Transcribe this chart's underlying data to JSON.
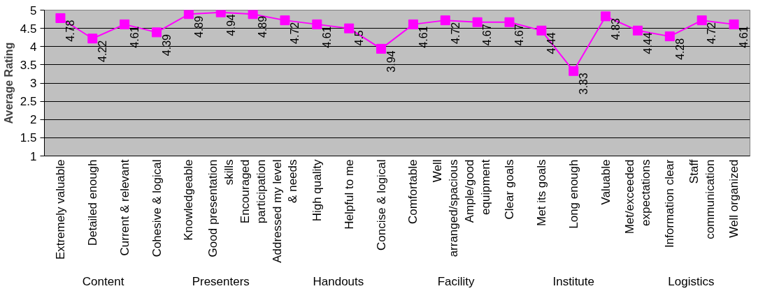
{
  "chart_data": {
    "type": "line",
    "ylabel": "Average Rating",
    "categories": [
      "Extremely valuable",
      "Detailed enough",
      "Current & relevant",
      "Cohesive & logical",
      "Knowledgeable",
      "Good presentation skills",
      "Encouraged participation",
      "Addressed my level & needs",
      "High quality",
      "Helpful to me",
      "Concise & logical",
      "Comfortable",
      "Well arranged/spacious",
      "Ample/good equipment",
      "Clear goals",
      "Met its goals",
      "Long enough",
      "Valuable",
      "Met/exceeded expectations",
      "Information clear",
      "Staff communication",
      "Well organized"
    ],
    "series": [
      {
        "color": "#ff00ff",
        "values": [
          4.78,
          4.22,
          4.61,
          4.39,
          4.89,
          4.94,
          4.89,
          4.72,
          4.61,
          4.5,
          3.94,
          4.61,
          4.72,
          4.67,
          4.67,
          4.44,
          3.33,
          4.83,
          4.44,
          4.28,
          4.72,
          4.61
        ]
      }
    ],
    "ylim": [
      1,
      5
    ],
    "yticks": [
      1,
      1.5,
      2,
      2.5,
      3,
      3.5,
      4,
      4.5,
      5
    ],
    "grid": "y",
    "marker": "square",
    "line_style": "solid",
    "data_labels": true,
    "annotations": [
      "Content",
      "Presenters",
      "Handouts",
      "Facility",
      "Institute",
      "Logistics"
    ]
  }
}
